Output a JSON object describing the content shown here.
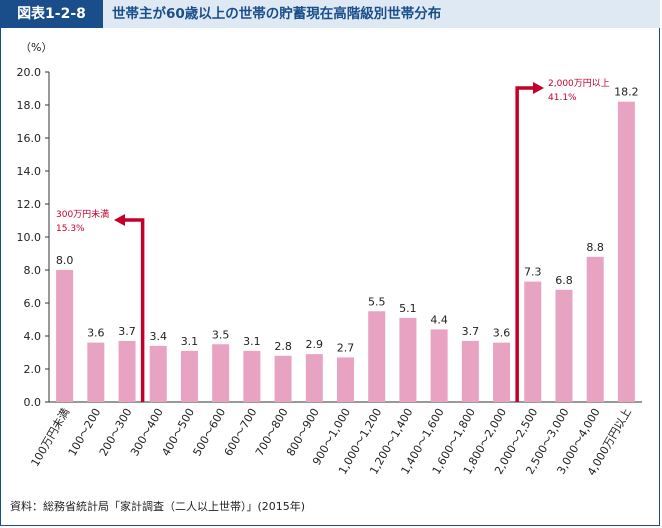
{
  "header": {
    "badge": "図表1-2-8",
    "title": "世帯主が60歳以上の世帯の貯蓄現在高階級別世帯分布"
  },
  "source": "資料：総務省統計局「家計調査（二人以上世帯）」(2015年)",
  "colors": {
    "bar": "#e8a3c3",
    "annotation": "#c4002a",
    "accent": "#1a4e8a"
  },
  "chart_data": {
    "type": "bar",
    "yunit": "（%）",
    "ylim": [
      0,
      20
    ],
    "yticks": [
      "0.0",
      "2.0",
      "4.0",
      "6.0",
      "8.0",
      "10.0",
      "12.0",
      "14.0",
      "16.0",
      "18.0",
      "20.0"
    ],
    "categories": [
      "100万円未満",
      "100～200",
      "200～300",
      "300～400",
      "400～500",
      "500～600",
      "600～700",
      "700～800",
      "800～900",
      "900～1,000",
      "1,000～1,200",
      "1,200～1,400",
      "1,400～1,600",
      "1,600～1,800",
      "1,800～2,000",
      "2,000～2,500",
      "2,500～3,000",
      "3,000～4,000",
      "4,000万円以上"
    ],
    "values": [
      8.0,
      3.6,
      3.7,
      3.4,
      3.1,
      3.5,
      3.1,
      2.8,
      2.9,
      2.7,
      5.5,
      5.1,
      4.4,
      3.7,
      3.6,
      7.3,
      6.8,
      8.8,
      18.2
    ],
    "value_labels": [
      "8.0",
      "3.6",
      "3.7",
      "3.4",
      "3.1",
      "3.5",
      "3.1",
      "2.8",
      "2.9",
      "2.7",
      "5.5",
      "5.1",
      "4.4",
      "3.7",
      "3.6",
      "7.3",
      "6.8",
      "8.8",
      "18.2"
    ],
    "annotations": [
      {
        "line1": "300万円未満",
        "line2": "15.3%"
      },
      {
        "line1": "2,000万円以上",
        "line2": "41.1%"
      }
    ]
  }
}
